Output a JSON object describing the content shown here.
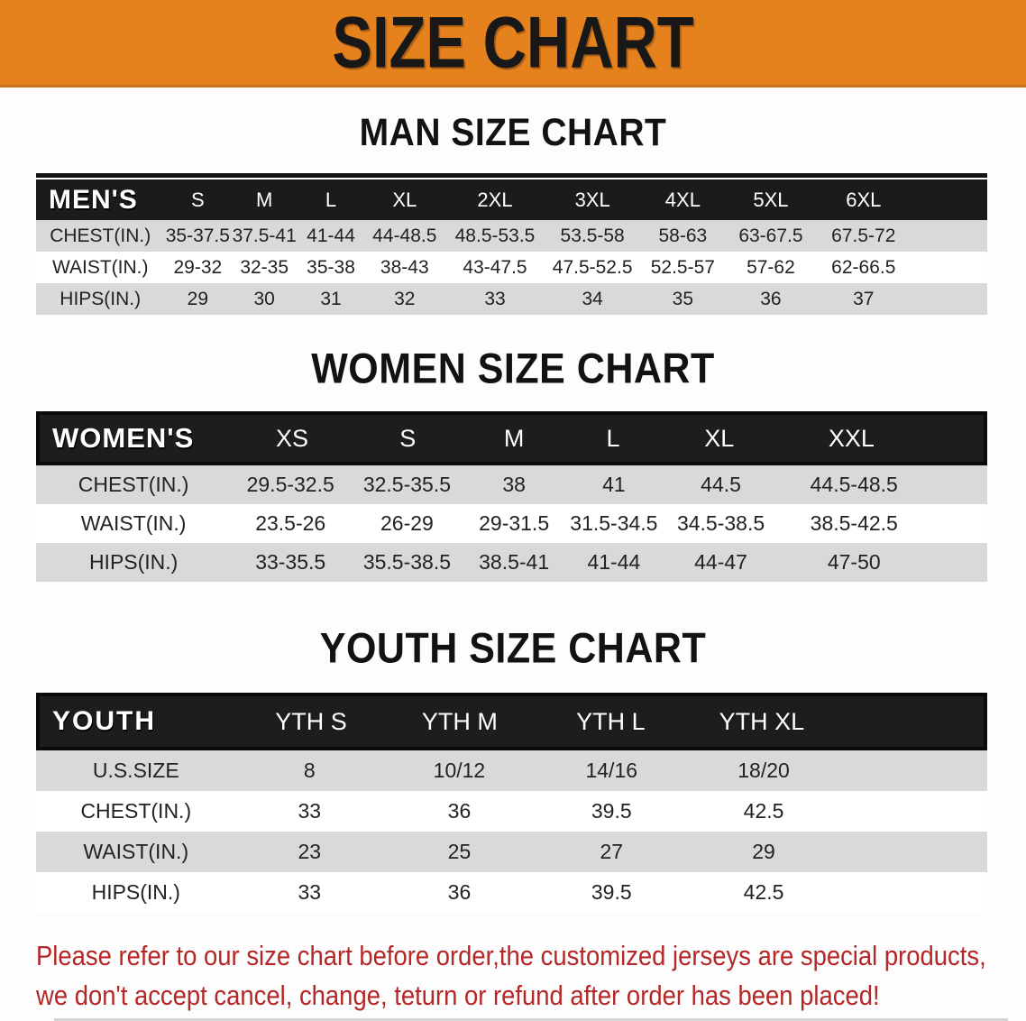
{
  "banner": {
    "title": "SIZE CHART"
  },
  "colors": {
    "banner_bg": "#e6821e",
    "header_bar": "#1b1b1b",
    "row_gray": "#d9d9d9",
    "disclaimer_red": "#b32727"
  },
  "sections": [
    {
      "heading": "MAN SIZE CHART",
      "table": {
        "header_label": "MEN'S",
        "columns": [
          "S",
          "M",
          "L",
          "XL",
          "2XL",
          "3XL",
          "4XL",
          "5XL",
          "6XL"
        ],
        "rows": [
          {
            "label": "CHEST(IN.)",
            "values": [
              "35-37.5",
              "37.5-41",
              "41-44",
              "44-48.5",
              "48.5-53.5",
              "53.5-58",
              "58-63",
              "63-67.5",
              "67.5-72"
            ]
          },
          {
            "label": "WAIST(IN.)",
            "values": [
              "29-32",
              "32-35",
              "35-38",
              "38-43",
              "43-47.5",
              "47.5-52.5",
              "52.5-57",
              "57-62",
              "62-66.5"
            ]
          },
          {
            "label": "HIPS(IN.)",
            "values": [
              "29",
              "30",
              "31",
              "32",
              "33",
              "34",
              "35",
              "36",
              "37"
            ]
          }
        ]
      }
    },
    {
      "heading": "WOMEN SIZE CHART",
      "table": {
        "header_label": "WOMEN'S",
        "columns": [
          "XS",
          "S",
          "M",
          "L",
          "XL",
          "XXL"
        ],
        "rows": [
          {
            "label": "CHEST(IN.)",
            "values": [
              "29.5-32.5",
              "32.5-35.5",
              "38",
              "41",
              "44.5",
              "44.5-48.5"
            ]
          },
          {
            "label": "WAIST(IN.)",
            "values": [
              "23.5-26",
              "26-29",
              "29-31.5",
              "31.5-34.5",
              "34.5-38.5",
              "38.5-42.5"
            ]
          },
          {
            "label": "HIPS(IN.)",
            "values": [
              "33-35.5",
              "35.5-38.5",
              "38.5-41",
              "41-44",
              "44-47",
              "47-50"
            ]
          }
        ]
      }
    },
    {
      "heading": "YOUTH SIZE CHART",
      "table": {
        "header_label": "YOUTH",
        "columns": [
          "YTH S",
          "YTH M",
          "YTH L",
          "YTH XL"
        ],
        "rows": [
          {
            "label": "U.S.SIZE",
            "values": [
              "8",
              "10/12",
              "14/16",
              "18/20"
            ]
          },
          {
            "label": "CHEST(IN.)",
            "values": [
              "33",
              "36",
              "39.5",
              "42.5"
            ]
          },
          {
            "label": "WAIST(IN.)",
            "values": [
              "23",
              "25",
              "27",
              "29"
            ]
          },
          {
            "label": "HIPS(IN.)",
            "values": [
              "33",
              "36",
              "39.5",
              "42.5"
            ]
          }
        ]
      }
    }
  ],
  "disclaimer": {
    "line1": "Please refer to our size chart before order,the customized jerseys are special products,",
    "line2": "we don't accept cancel, change, teturn or refund after order has been placed!"
  }
}
